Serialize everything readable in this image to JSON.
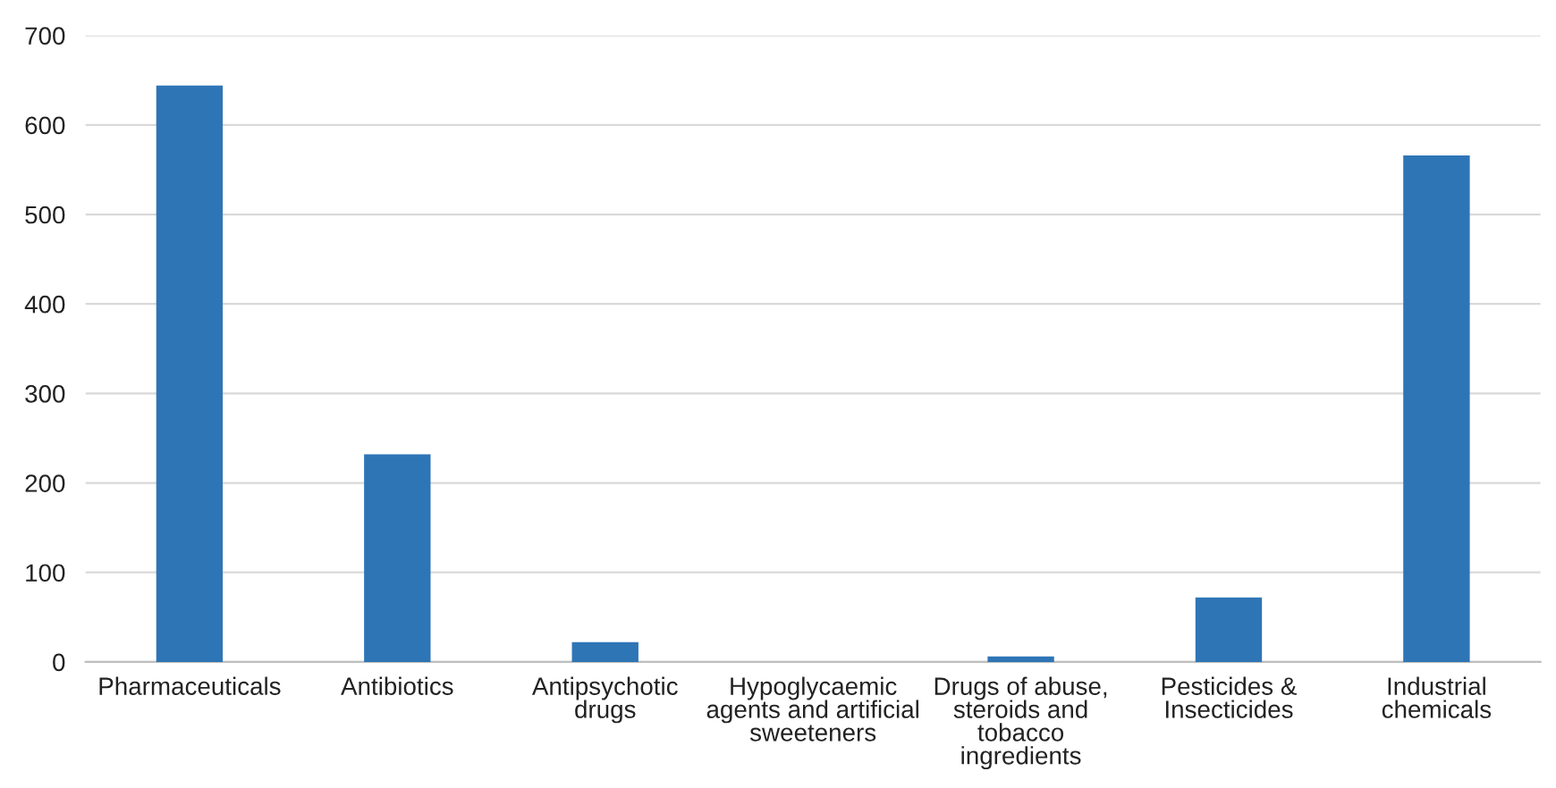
{
  "chart_data": {
    "type": "bar",
    "categories": [
      "Pharmaceuticals",
      "Antibiotics",
      "Antipsychotic\ndrugs",
      "Hypoglycaemic\nagents and artificial\nsweeteners",
      "Drugs of abuse,\nsteroids and\ntobacco\ningredients",
      "Pesticides &\nInsecticides",
      "Industrial\nchemicals"
    ],
    "values": [
      644,
      232,
      22,
      0,
      6,
      72,
      566
    ],
    "color": "#2e75b6",
    "ylim": [
      0,
      700
    ],
    "yticks": [
      0,
      100,
      200,
      300,
      400,
      500,
      600,
      700
    ],
    "grid": "y",
    "legend": false
  }
}
